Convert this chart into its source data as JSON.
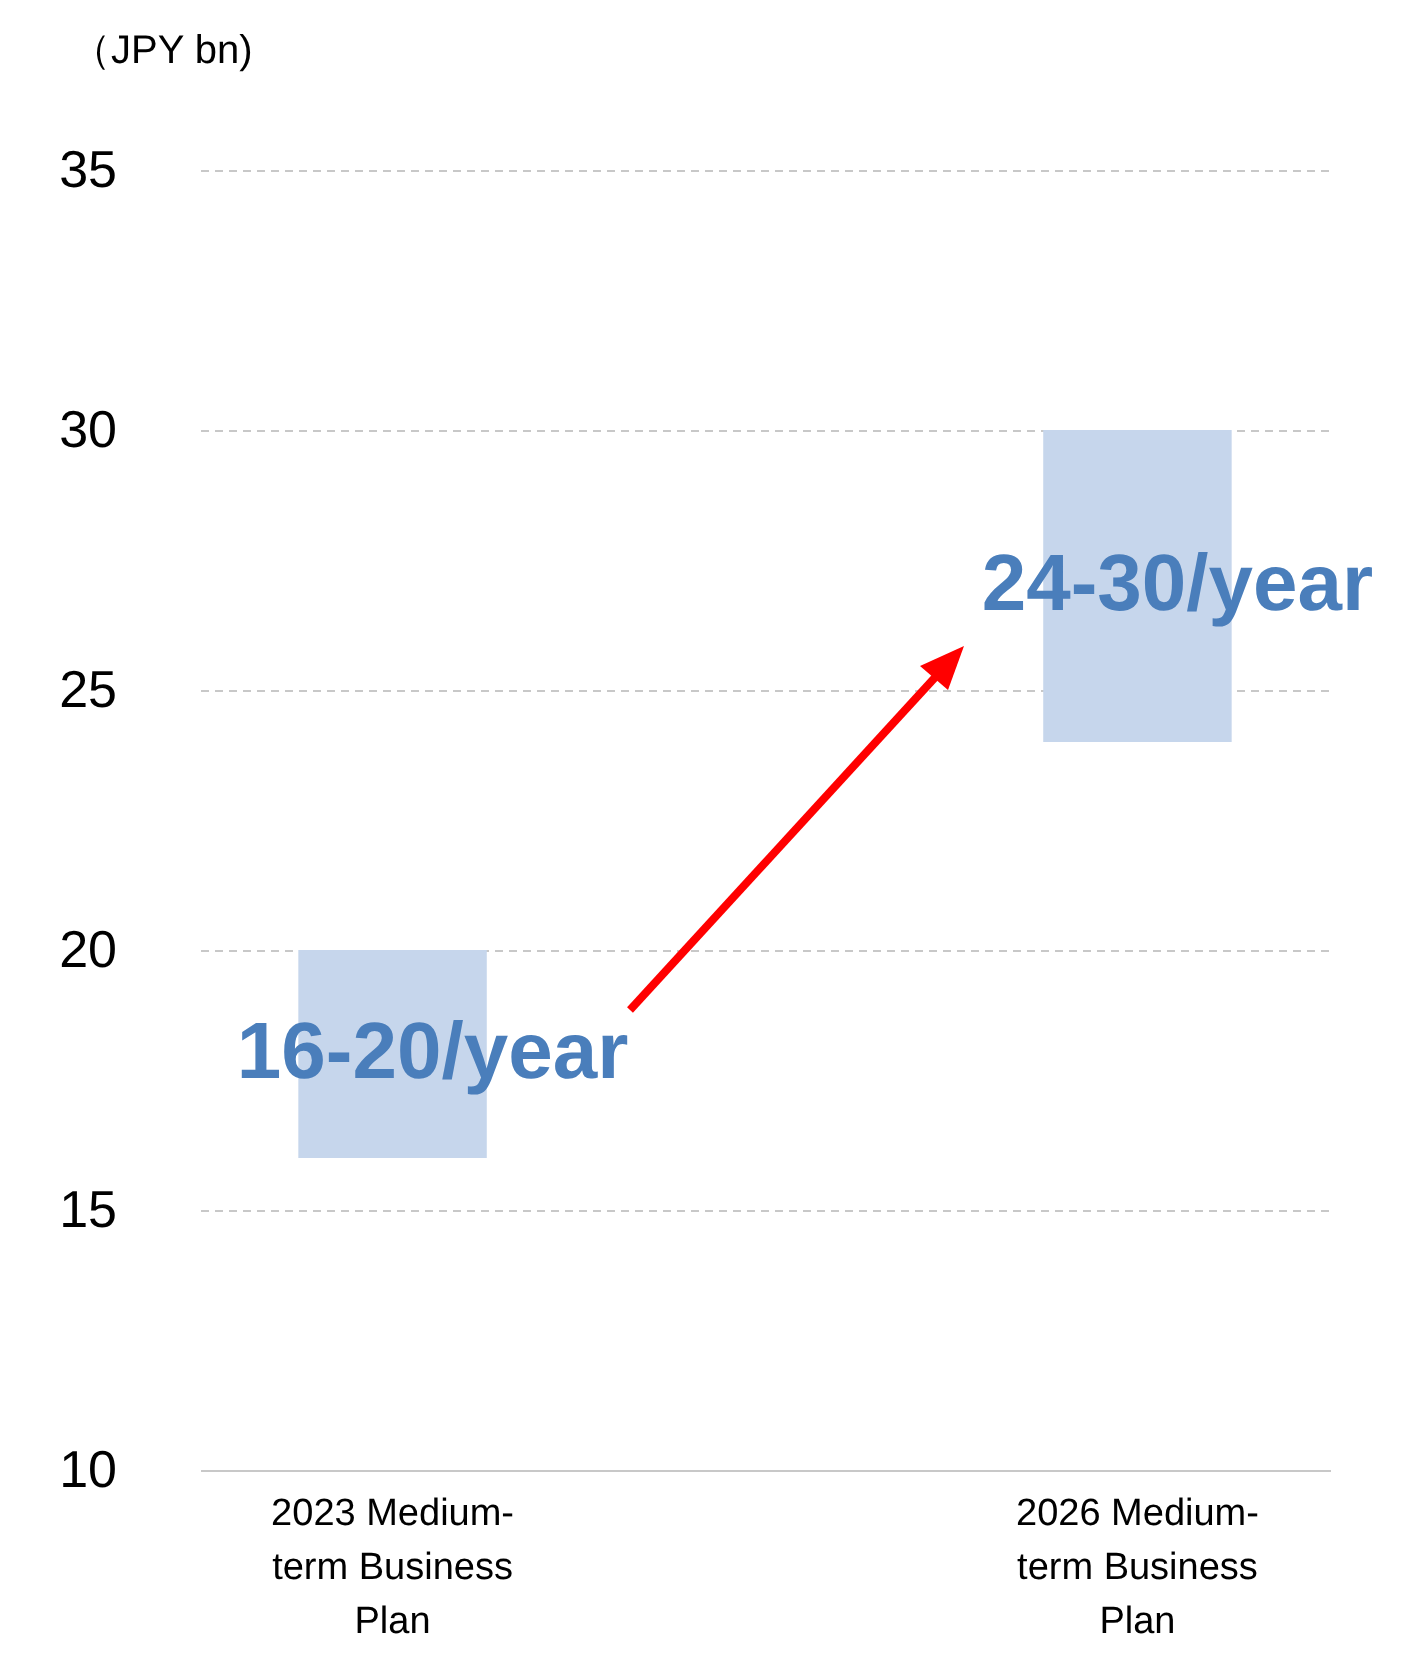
{
  "chart_data": {
    "type": "bar",
    "ylabel": "（JPY bn)",
    "categories": [
      "2023 Medium-term Business Plan",
      "2026 Medium-term Business Plan"
    ],
    "base": [
      16,
      24
    ],
    "values": [
      4,
      6
    ],
    "color": "#c6d6ec",
    "value_labels": [
      "16-20/year",
      "24-30/year"
    ],
    "ylim": [
      10,
      35
    ],
    "yticks": [
      10,
      15,
      20,
      25,
      30,
      35
    ],
    "grid": "y"
  }
}
